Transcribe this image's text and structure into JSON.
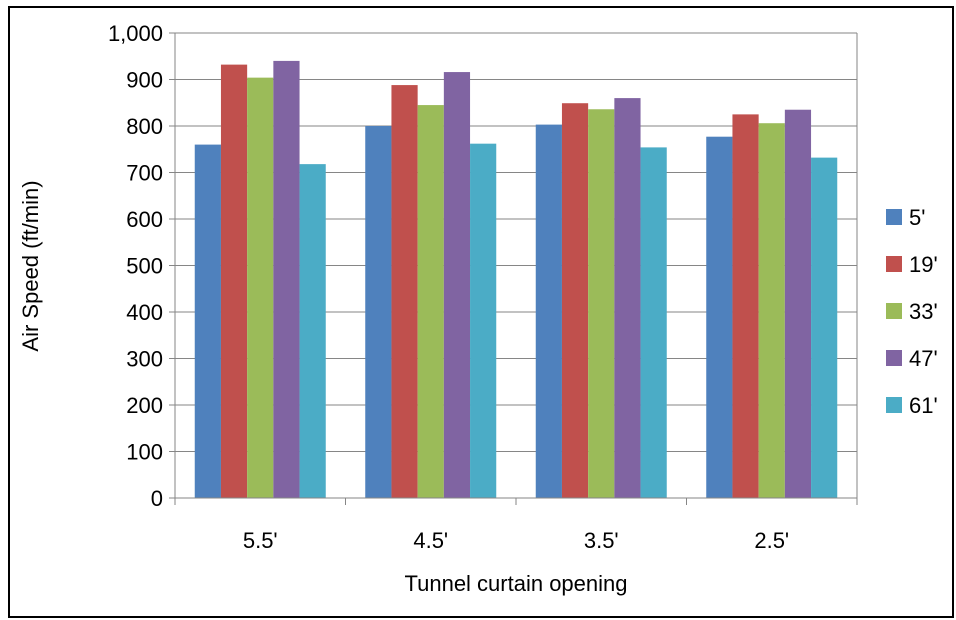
{
  "chart_data": {
    "type": "bar",
    "title": "",
    "xlabel": "Tunnel curtain opening",
    "ylabel": "Air Speed (ft/min)",
    "categories": [
      "5.5'",
      "4.5'",
      "3.5'",
      "2.5'"
    ],
    "ylim": [
      0,
      1000
    ],
    "yticks": [
      0,
      100,
      200,
      300,
      400,
      500,
      600,
      700,
      800,
      900,
      1000
    ],
    "ytick_labels": [
      "0",
      "100",
      "200",
      "300",
      "400",
      "500",
      "600",
      "700",
      "800",
      "900",
      "1,000"
    ],
    "grid": true,
    "legend_position": "right",
    "series": [
      {
        "name": "5'",
        "color": "#4F81BD",
        "values": [
          760,
          800,
          803,
          777
        ]
      },
      {
        "name": "19'",
        "color": "#C0504D",
        "values": [
          932,
          888,
          849,
          825
        ]
      },
      {
        "name": "33'",
        "color": "#9BBB59",
        "values": [
          904,
          845,
          836,
          806
        ]
      },
      {
        "name": "47'",
        "color": "#8064A2",
        "values": [
          940,
          916,
          860,
          835
        ]
      },
      {
        "name": "61'",
        "color": "#4BACC6",
        "values": [
          718,
          762,
          754,
          732
        ]
      }
    ]
  }
}
